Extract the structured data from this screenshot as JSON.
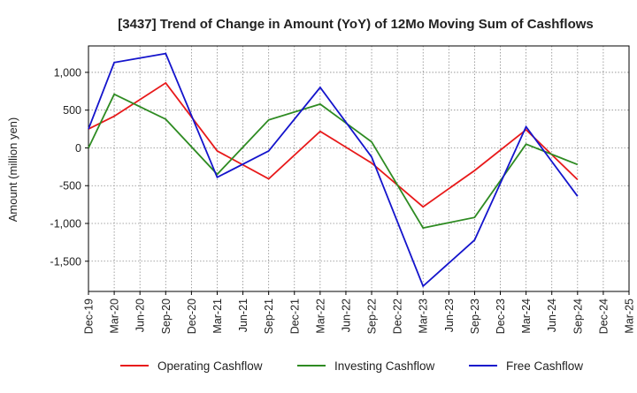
{
  "chart_data": {
    "type": "line",
    "title": "[3437]  Trend of Change in Amount (YoY) of 12Mo Moving Sum of Cashflows",
    "xlabel": "",
    "ylabel": "Amount (million yen)",
    "categories": [
      "Dec-19",
      "Mar-20",
      "Jun-20",
      "Sep-20",
      "Dec-20",
      "Mar-21",
      "Jun-21",
      "Sep-21",
      "Dec-21",
      "Mar-22",
      "Jun-22",
      "Sep-22",
      "Dec-22",
      "Mar-23",
      "Jun-23",
      "Sep-23",
      "Dec-23",
      "Mar-24",
      "Jun-24",
      "Sep-24",
      "Dec-24",
      "Mar-25"
    ],
    "ylim": [
      -1900,
      1350
    ],
    "yticks": [
      1000,
      500,
      0,
      -500,
      -1000,
      -1500
    ],
    "ytick_labels": [
      "1,000",
      "500",
      "0",
      "-500",
      "-1,000",
      "-1,500"
    ],
    "grid": true,
    "legend_position": "bottom",
    "series": [
      {
        "name": "Operating Cashflow",
        "color": "#e8191a",
        "values": [
          250,
          420,
          null,
          860,
          null,
          -40,
          null,
          -410,
          null,
          220,
          null,
          -200,
          null,
          -780,
          null,
          -300,
          null,
          240,
          null,
          -420,
          null,
          null
        ]
      },
      {
        "name": "Investing Cashflow",
        "color": "#2e8b22",
        "values": [
          0,
          710,
          null,
          380,
          null,
          -350,
          null,
          370,
          null,
          580,
          null,
          80,
          null,
          -1060,
          null,
          -920,
          null,
          50,
          null,
          -220,
          null,
          null
        ]
      },
      {
        "name": "Free Cashflow",
        "color": "#1414cc",
        "values": [
          250,
          1130,
          null,
          1250,
          null,
          -390,
          null,
          -40,
          null,
          800,
          null,
          -120,
          null,
          -1830,
          null,
          -1220,
          null,
          280,
          null,
          -640,
          null,
          null
        ]
      }
    ]
  }
}
